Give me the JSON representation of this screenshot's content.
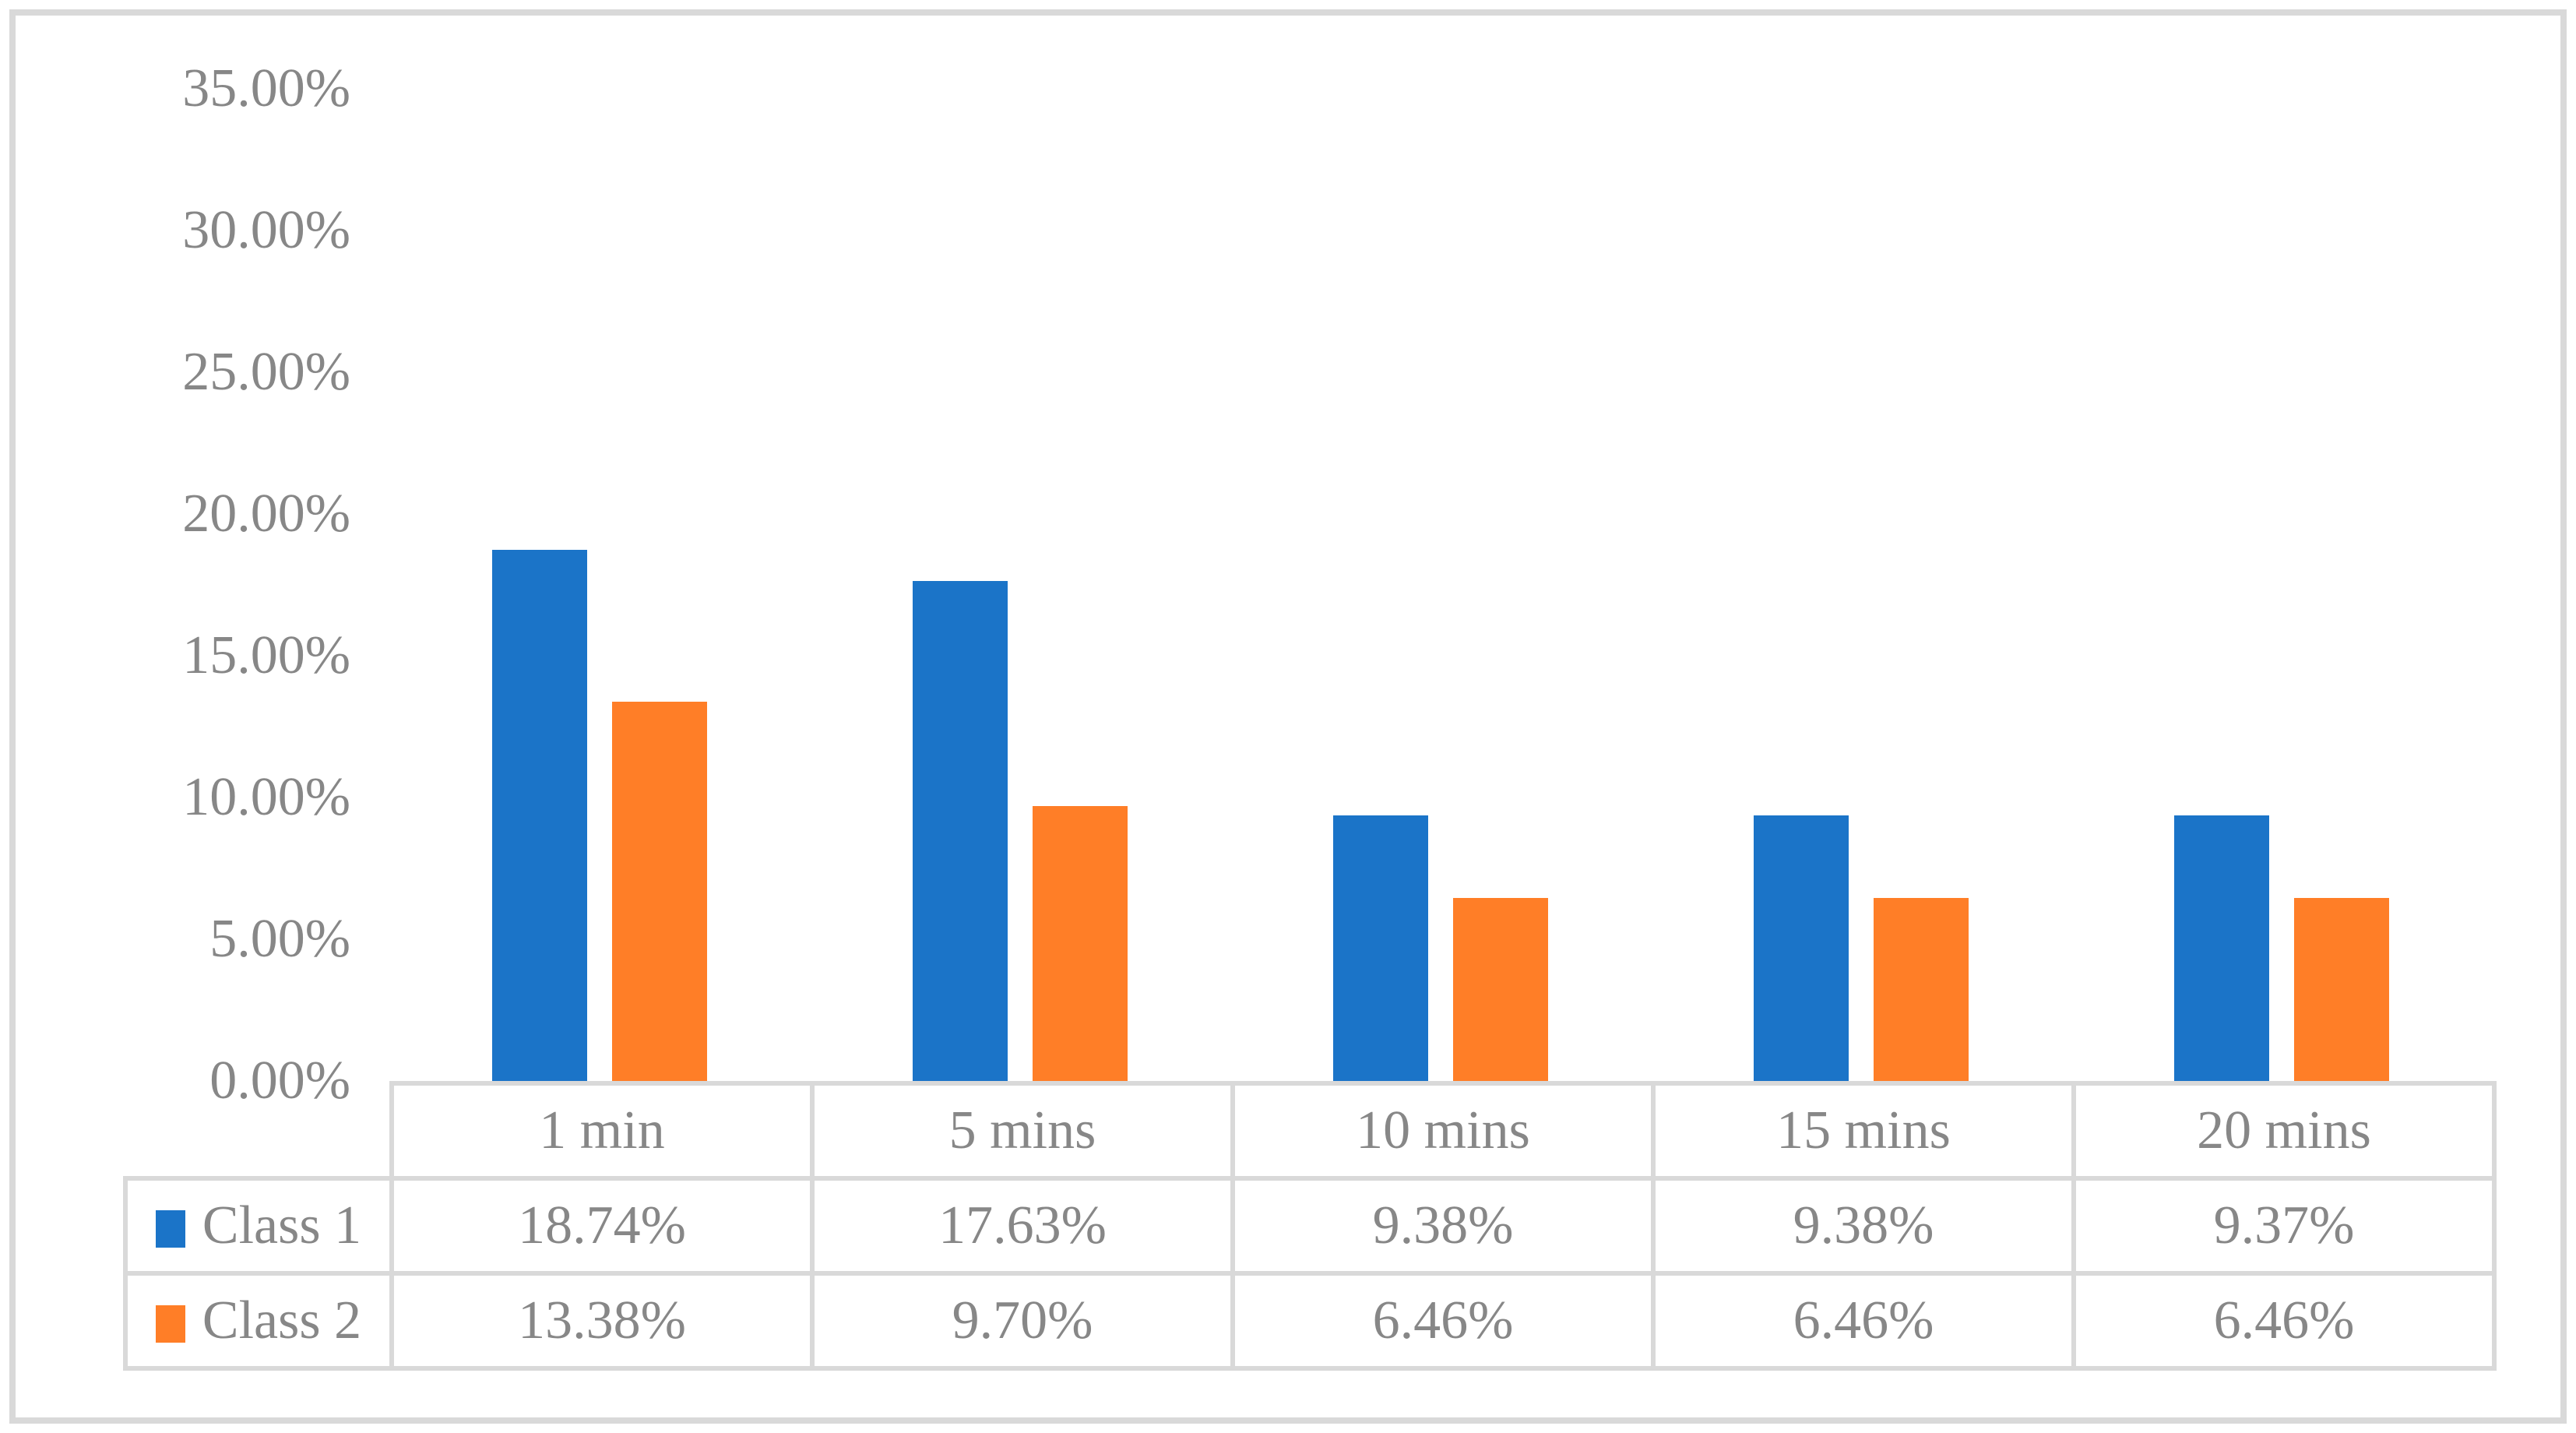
{
  "figure": {
    "background_color": "#ffffff",
    "border_color": "#d9d9d9",
    "text_color": "#878787",
    "table_border_color": "#d9d9d9"
  },
  "chart_data": {
    "type": "bar",
    "title": "",
    "xlabel": "",
    "ylabel": "",
    "grid": false,
    "legend_position": "table-left",
    "categories": [
      "1 min",
      "5 mins",
      "10 mins",
      "15 mins",
      "20 mins"
    ],
    "series": [
      {
        "name": "Class 1",
        "color": "#1b74c8",
        "values": [
          18.74,
          17.63,
          9.38,
          9.38,
          9.37
        ],
        "labels": [
          "18.74%",
          "17.63%",
          "9.38%",
          "9.38%",
          "9.37%"
        ]
      },
      {
        "name": "Class 2",
        "color": "#ff7e27",
        "values": [
          13.38,
          9.7,
          6.46,
          6.46,
          6.46
        ],
        "labels": [
          "13.38%",
          "9.70%",
          "6.46%",
          "6.46%",
          "6.46%"
        ]
      }
    ],
    "y_axis": {
      "min": 0,
      "max": 35,
      "step": 5,
      "tick_labels": [
        "0.00%",
        "5.00%",
        "10.00%",
        "15.00%",
        "20.00%",
        "25.00%",
        "30.00%",
        "35.00%"
      ]
    }
  }
}
